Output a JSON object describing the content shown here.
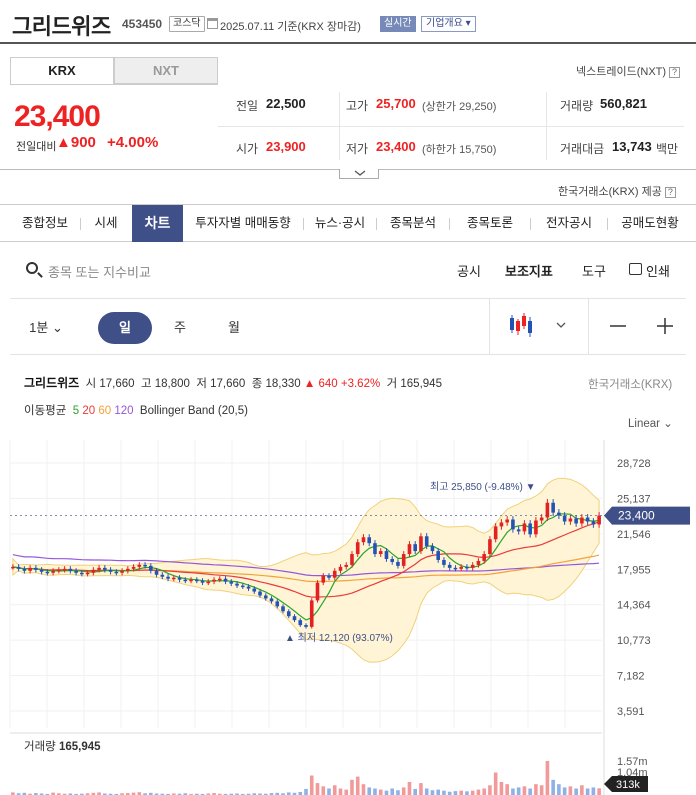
{
  "header": {
    "name": "그리드위즈",
    "code": "453450",
    "market_tag": "코스닥",
    "date": "2025.07.11 기준(KRX 장마감)",
    "live": "실시간",
    "corp": "기업개요"
  },
  "market_tabs": [
    {
      "label": "KRX",
      "active": true
    },
    {
      "label": "NXT",
      "active": false
    }
  ],
  "nxt_trade": "넥스트레이드(NXT)",
  "quote": {
    "price": "23,400",
    "change_label": "전일대비",
    "change": "900",
    "change_pct": "+4.00%",
    "prev_close_label": "전일",
    "prev_close": "22,500",
    "high_label": "고가",
    "high": "25,700",
    "upper_limit": "(상한가 29,250)",
    "volume_label": "거래량",
    "volume": "560,821",
    "open_label": "시가",
    "open": "23,900",
    "low_label": "저가",
    "low": "23,400",
    "lower_limit": "(하한가 15,750)",
    "amount_label": "거래대금",
    "amount": "13,743",
    "amount_unit": "백만"
  },
  "provider": "한국거래소(KRX) 제공",
  "nav": [
    "종합정보",
    "시세",
    "차트",
    "투자자별 매매동향",
    "뉴스·공시",
    "종목분석",
    "종목토론",
    "전자공시",
    "공매도현황"
  ],
  "search": {
    "placeholder": "종목 또는 지수비교"
  },
  "tools": [
    "공시",
    "보조지표",
    "도구",
    "인쇄"
  ],
  "periods": [
    "1분",
    "일",
    "주",
    "월"
  ],
  "chart_info": {
    "name": "그리드위즈",
    "open_label": "시",
    "open": "17,660",
    "high_label": "고",
    "high": "18,800",
    "low_label": "저",
    "low": "17,660",
    "close_label": "종",
    "close": "18,330",
    "chg": "▲ 640",
    "pct": "+3.62%",
    "vol_label": "거",
    "vol": "165,945",
    "source": "한국거래소(KRX)",
    "ma_label": "이동평균",
    "ma": [
      "5",
      "20",
      "60",
      "120"
    ],
    "bb": "Bollinger Band (20,5)",
    "scale": "Linear"
  },
  "colors": {
    "up": "#e22222",
    "down": "#2453b5",
    "ma5": "#2aa52a",
    "ma20": "#ea3a3a",
    "ma60": "#f1a33a",
    "ma120": "#9857d6",
    "bb_fill": "#fff4d6",
    "bb_line": "#f0d27a",
    "nav_active": "#3f4f88"
  },
  "chart_data": {
    "type": "candlestick",
    "y_ticks": [
      "28,728",
      "25,137",
      "21,546",
      "17,955",
      "14,364",
      "10,773",
      "7,182",
      "3,591"
    ],
    "ylim": [
      3591,
      28728
    ],
    "current_price": "23,400",
    "annotations": {
      "max": "최고 25,850 (-9.48%) ▼",
      "min": "▲ 최저 12,120 (93.07%)"
    },
    "volume_label": "거래량",
    "volume_value": "165,945",
    "volume_ticks": [
      "1.57m",
      "1.04m"
    ],
    "volume_current": "313k",
    "close_series": [
      18200,
      18000,
      17800,
      18100,
      17900,
      17700,
      17600,
      17800,
      17900,
      18000,
      17800,
      17600,
      17500,
      17600,
      17900,
      18100,
      17900,
      17700,
      17600,
      17800,
      18000,
      18200,
      18400,
      18300,
      17800,
      17400,
      17200,
      17000,
      17100,
      16900,
      16800,
      16900,
      16800,
      16600,
      16700,
      16900,
      17000,
      16700,
      16500,
      16300,
      16200,
      16000,
      15700,
      15300,
      15000,
      14700,
      14200,
      13700,
      13200,
      12800,
      12300,
      12120,
      14800,
      16600,
      17300,
      17100,
      17800,
      18200,
      18400,
      19500,
      20700,
      21200,
      20600,
      19500,
      19800,
      19000,
      18700,
      18300,
      19500,
      20500,
      19800,
      21300,
      20300,
      19800,
      18900,
      18400,
      18100,
      18000,
      18200,
      18100,
      18400,
      18800,
      19500,
      21000,
      22300,
      22700,
      23000,
      22000,
      21800,
      22600,
      21500,
      22900,
      23200,
      24700,
      23700,
      23400,
      22800,
      23100,
      22600,
      23200,
      22800,
      22500,
      23400
    ],
    "volume_series": [
      0.12,
      0.08,
      0.1,
      0.06,
      0.09,
      0.07,
      0.05,
      0.11,
      0.08,
      0.06,
      0.07,
      0.05,
      0.06,
      0.08,
      0.1,
      0.12,
      0.07,
      0.06,
      0.05,
      0.08,
      0.09,
      0.11,
      0.13,
      0.08,
      0.1,
      0.07,
      0.06,
      0.05,
      0.07,
      0.06,
      0.08,
      0.05,
      0.06,
      0.05,
      0.07,
      0.09,
      0.06,
      0.05,
      0.06,
      0.07,
      0.05,
      0.06,
      0.08,
      0.07,
      0.06,
      0.09,
      0.1,
      0.08,
      0.12,
      0.1,
      0.14,
      0.28,
      0.9,
      0.55,
      0.4,
      0.3,
      0.45,
      0.3,
      0.25,
      0.7,
      0.85,
      0.5,
      0.35,
      0.3,
      0.25,
      0.2,
      0.3,
      0.22,
      0.35,
      0.6,
      0.28,
      0.55,
      0.3,
      0.22,
      0.25,
      0.2,
      0.15,
      0.18,
      0.2,
      0.17,
      0.2,
      0.25,
      0.3,
      0.45,
      1.04,
      0.6,
      0.5,
      0.3,
      0.35,
      0.4,
      0.3,
      0.5,
      0.45,
      1.57,
      0.7,
      0.5,
      0.35,
      0.4,
      0.3,
      0.45,
      0.3,
      0.35,
      0.31
    ]
  }
}
